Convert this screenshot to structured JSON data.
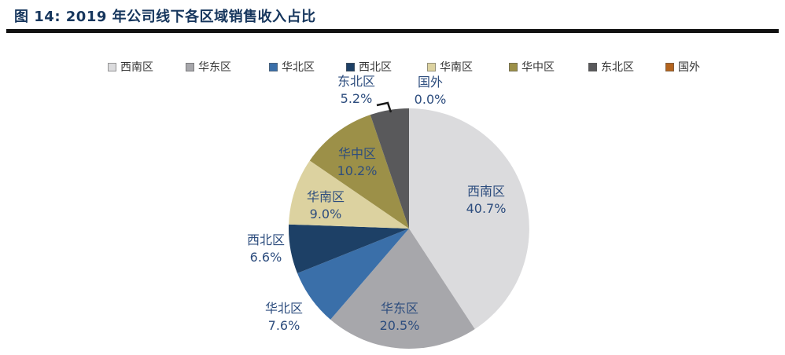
{
  "figure": {
    "title": "图 14:  2019 年公司线下各区域销售收入占比"
  },
  "chart_data": {
    "type": "pie",
    "title": "2019 年公司线下各区域销售收入占比",
    "unit": "%",
    "legend_position": "top",
    "start_angle_deg": 0,
    "direction": "clockwise",
    "slices": [
      {
        "label": "西南区",
        "value": 40.7,
        "pct_text": "40.7%",
        "color": "#dbdbdd"
      },
      {
        "label": "华东区",
        "value": 20.5,
        "pct_text": "20.5%",
        "color": "#a7a7ab"
      },
      {
        "label": "华北区",
        "value": 7.6,
        "pct_text": "7.6%",
        "color": "#3a6fa9"
      },
      {
        "label": "西北区",
        "value": 6.6,
        "pct_text": "6.6%",
        "color": "#1d4066"
      },
      {
        "label": "华南区",
        "value": 9.0,
        "pct_text": "9.0%",
        "color": "#dcd2a0"
      },
      {
        "label": "华中区",
        "value": 10.2,
        "pct_text": "10.2%",
        "color": "#9c9048"
      },
      {
        "label": "东北区",
        "value": 5.2,
        "pct_text": "5.2%",
        "color": "#59595b"
      },
      {
        "label": "国外",
        "value": 0.0,
        "pct_text": "0.0%",
        "color": "#b4641e"
      }
    ]
  },
  "colors": {
    "title_text": "#16365d",
    "divider": "#111111",
    "label_text": "#2d4d7e",
    "leader_line": "#1a1a1a"
  }
}
